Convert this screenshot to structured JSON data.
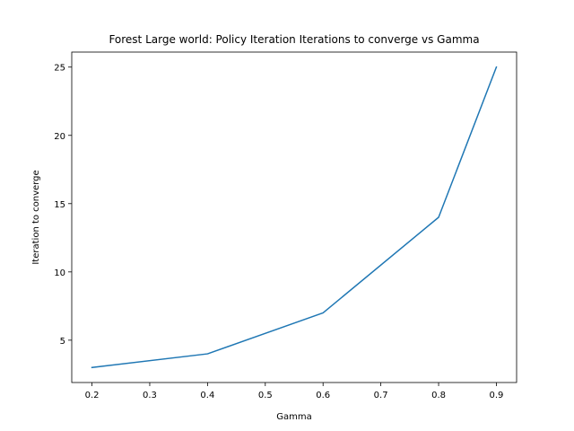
{
  "chart_data": {
    "type": "line",
    "title": "Forest Large world: Policy Iteration Iterations to converge vs Gamma",
    "xlabel": "Gamma",
    "ylabel": "Iteration to converge",
    "xlim": [
      0.165,
      0.935
    ],
    "ylim": [
      1.9,
      26.1
    ],
    "x_ticks": [
      0.2,
      0.3,
      0.4,
      0.5,
      0.6,
      0.7,
      0.8,
      0.9
    ],
    "x_tick_labels": [
      "0.2",
      "0.3",
      "0.4",
      "0.5",
      "0.6",
      "0.7",
      "0.8",
      "0.9"
    ],
    "y_ticks": [
      5,
      10,
      15,
      20,
      25
    ],
    "y_tick_labels": [
      "5",
      "10",
      "15",
      "20",
      "25"
    ],
    "grid": false,
    "series": [
      {
        "color": "#1f77b4",
        "x": [
          0.2,
          0.4,
          0.6,
          0.8,
          0.9
        ],
        "y": [
          3,
          4,
          7,
          14,
          25
        ]
      }
    ]
  }
}
